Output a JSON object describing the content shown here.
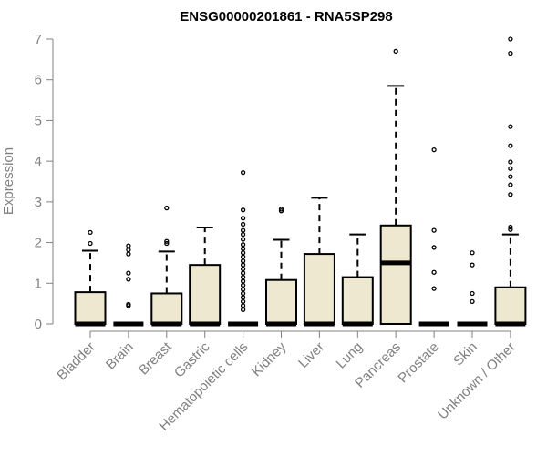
{
  "chart_data": {
    "type": "boxplot",
    "title": "ENSG00000201861 - RNA5SP298",
    "xlabel": "",
    "ylabel": "Expression",
    "ylim": [
      0,
      7
    ],
    "yticks": [
      0,
      1,
      2,
      3,
      4,
      5,
      6,
      7
    ],
    "grid": false,
    "legend": "none",
    "categories": [
      "Bladder",
      "Brain",
      "Breast",
      "Gastric",
      "Hematopoietic cells",
      "Kidney",
      "Liver",
      "Lung",
      "Pancreas",
      "Prostate",
      "Skin",
      "Unknown / Other"
    ],
    "boxes": [
      {
        "q1": 0,
        "median": 0,
        "q3": 0.78,
        "whisker_low": 0,
        "whisker_high": 1.8,
        "outliers": [
          2.25,
          1.98
        ]
      },
      {
        "q1": 0,
        "median": 0,
        "q3": 0,
        "whisker_low": 0,
        "whisker_high": 0,
        "outliers": [
          1.92,
          1.82,
          1.72,
          1.25,
          1.1,
          0.48,
          0.45
        ]
      },
      {
        "q1": 0,
        "median": 0,
        "q3": 0.75,
        "whisker_low": 0,
        "whisker_high": 1.78,
        "outliers": [
          2.85,
          2.03,
          1.98
        ]
      },
      {
        "q1": 0,
        "median": 0,
        "q3": 1.45,
        "whisker_low": 0,
        "whisker_high": 2.37,
        "outliers": []
      },
      {
        "q1": 0,
        "median": 0,
        "q3": 0,
        "whisker_low": 0,
        "whisker_high": 0,
        "outliers": [
          3.72,
          2.8,
          2.6,
          2.45,
          2.3,
          2.2,
          2.08,
          1.95,
          1.85,
          1.75,
          1.65,
          1.55,
          1.45,
          1.35,
          1.25,
          1.15,
          1.05,
          0.95,
          0.85,
          0.75,
          0.65,
          0.55,
          0.45,
          0.35
        ]
      },
      {
        "q1": 0,
        "median": 0,
        "q3": 1.08,
        "whisker_low": 0,
        "whisker_high": 2.07,
        "outliers": [
          2.82,
          2.78
        ]
      },
      {
        "q1": 0,
        "median": 0,
        "q3": 1.72,
        "whisker_low": 0,
        "whisker_high": 3.1,
        "outliers": []
      },
      {
        "q1": 0,
        "median": 0,
        "q3": 1.15,
        "whisker_low": 0,
        "whisker_high": 2.2,
        "outliers": []
      },
      {
        "q1": 0,
        "median": 1.5,
        "q3": 2.42,
        "whisker_low": 0,
        "whisker_high": 5.85,
        "outliers": [
          6.7
        ]
      },
      {
        "q1": 0,
        "median": 0,
        "q3": 0,
        "whisker_low": 0,
        "whisker_high": 0,
        "outliers": [
          4.28,
          2.3,
          1.88,
          1.27,
          0.87
        ]
      },
      {
        "q1": 0,
        "median": 0,
        "q3": 0,
        "whisker_low": 0,
        "whisker_high": 0,
        "outliers": [
          1.75,
          1.45,
          0.75,
          0.55
        ]
      },
      {
        "q1": 0,
        "median": 0,
        "q3": 0.9,
        "whisker_low": 0,
        "whisker_high": 2.2,
        "outliers": [
          7.0,
          6.65,
          4.85,
          4.38,
          3.98,
          3.82,
          3.62,
          3.42,
          3.18,
          2.38,
          2.32
        ]
      }
    ],
    "colors": {
      "box_fill": "#efe8d0",
      "axis": "#808080",
      "text": "#808080",
      "stroke": "#000000"
    }
  }
}
